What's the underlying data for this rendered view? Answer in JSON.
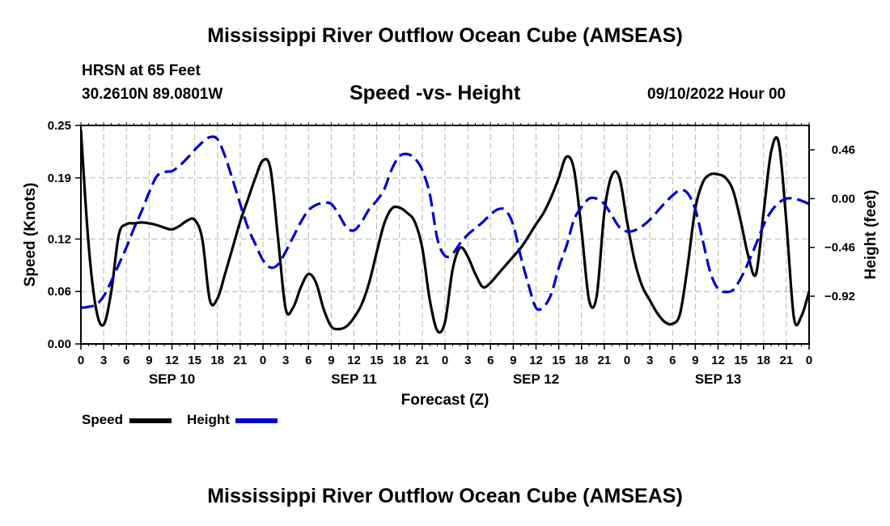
{
  "header": {
    "main_title": "Mississippi River Outflow Ocean Cube (AMSEAS)",
    "station": "HRSN at 65 Feet",
    "coordinates": "30.2610N  89.0801W",
    "datetime": "09/10/2022 Hour 00",
    "bottom_title": "Mississippi River Outflow Ocean Cube (AMSEAS)"
  },
  "legend": {
    "speed_label": "Speed",
    "height_label": "Height"
  },
  "colors": {
    "speed": "#000000",
    "height": "#0000cc",
    "grid": "#b4b4b4"
  },
  "chart_data": {
    "type": "line",
    "title": "Speed -vs- Height",
    "xlabel": "Forecast (Z)",
    "ylabel": "Speed (Knots)",
    "y2label": "Height (feet)",
    "xlim": [
      0,
      96
    ],
    "ylim": [
      0,
      0.25
    ],
    "y2lim": [
      -1.37,
      0.69
    ],
    "x_tick_values": [
      0,
      3,
      6,
      9,
      12,
      15,
      18,
      21,
      24,
      27,
      30,
      33,
      36,
      39,
      42,
      45,
      48,
      51,
      54,
      57,
      60,
      63,
      66,
      69,
      72,
      75,
      78,
      81,
      84,
      87,
      90,
      93,
      96
    ],
    "x_tick_labels": [
      "0",
      "3",
      "6",
      "9",
      "12",
      "15",
      "18",
      "21",
      "0",
      "3",
      "6",
      "9",
      "12",
      "15",
      "18",
      "21",
      "0",
      "3",
      "6",
      "9",
      "12",
      "15",
      "18",
      "21",
      "0",
      "3",
      "6",
      "9",
      "12",
      "15",
      "18",
      "21",
      "0"
    ],
    "date_labels": [
      {
        "label": "SEP 10",
        "x": 12
      },
      {
        "label": "SEP 11",
        "x": 36
      },
      {
        "label": "SEP 12",
        "x": 60
      },
      {
        "label": "SEP 13",
        "x": 84
      }
    ],
    "y_ticks": [
      0.0,
      0.06,
      0.12,
      0.19,
      0.25
    ],
    "y_tick_labels": [
      "0.00",
      "0.06",
      "0.12",
      "0.19",
      "0.25"
    ],
    "y2_ticks": [
      0.46,
      0.0,
      -0.46,
      -0.92
    ],
    "y2_tick_labels": [
      "0.46",
      "0.00",
      "−0.46",
      "−0.92"
    ],
    "grid": true,
    "series": [
      {
        "name": "Speed",
        "axis": "left",
        "style": "solid",
        "x": [
          0,
          1,
          2,
          3,
          4,
          5,
          6,
          7,
          8,
          9,
          10,
          11,
          12,
          13,
          14,
          15,
          16,
          17,
          18,
          19,
          20,
          21,
          22,
          23,
          24,
          25,
          26,
          27,
          28,
          29,
          30,
          31,
          32,
          33,
          34,
          35,
          36,
          37,
          38,
          39,
          40,
          41,
          42,
          43,
          44,
          45,
          46,
          47,
          48,
          49,
          50,
          51,
          52,
          53,
          54,
          55,
          56,
          57,
          58,
          59,
          60,
          61,
          62,
          63,
          64,
          65,
          66,
          67,
          68,
          69,
          70,
          71,
          72,
          73,
          74,
          75,
          76,
          77,
          78,
          79,
          80,
          81,
          82,
          83,
          84,
          85,
          86,
          87,
          88,
          89,
          90,
          91,
          92,
          93,
          94,
          95,
          96
        ],
        "values": [
          0.245,
          0.115,
          0.04,
          0.022,
          0.06,
          0.125,
          0.137,
          0.138,
          0.139,
          0.138,
          0.136,
          0.133,
          0.131,
          0.135,
          0.141,
          0.142,
          0.12,
          0.05,
          0.052,
          0.08,
          0.11,
          0.14,
          0.165,
          0.19,
          0.21,
          0.2,
          0.12,
          0.04,
          0.042,
          0.065,
          0.08,
          0.07,
          0.04,
          0.02,
          0.017,
          0.02,
          0.03,
          0.045,
          0.07,
          0.105,
          0.138,
          0.155,
          0.156,
          0.15,
          0.14,
          0.11,
          0.05,
          0.015,
          0.025,
          0.085,
          0.11,
          0.1,
          0.08,
          0.065,
          0.07,
          0.08,
          0.09,
          0.1,
          0.11,
          0.123,
          0.137,
          0.15,
          0.168,
          0.19,
          0.214,
          0.2,
          0.13,
          0.05,
          0.055,
          0.15,
          0.193,
          0.19,
          0.14,
          0.095,
          0.066,
          0.05,
          0.035,
          0.025,
          0.023,
          0.035,
          0.09,
          0.155,
          0.185,
          0.194,
          0.194,
          0.19,
          0.175,
          0.14,
          0.1,
          0.08,
          0.15,
          0.22,
          0.23,
          0.14,
          0.03,
          0.032,
          0.06
        ]
      },
      {
        "name": "Height",
        "axis": "right",
        "style": "dashed",
        "x": [
          0,
          1,
          2,
          3,
          4,
          5,
          6,
          7,
          8,
          9,
          10,
          11,
          12,
          13,
          14,
          15,
          16,
          17,
          18,
          19,
          20,
          21,
          22,
          23,
          24,
          25,
          26,
          27,
          28,
          29,
          30,
          31,
          32,
          33,
          34,
          35,
          36,
          37,
          38,
          39,
          40,
          41,
          42,
          43,
          44,
          45,
          46,
          47,
          48,
          49,
          50,
          51,
          52,
          53,
          54,
          55,
          56,
          57,
          58,
          59,
          60,
          61,
          62,
          63,
          64,
          65,
          66,
          67,
          68,
          69,
          70,
          71,
          72,
          73,
          74,
          75,
          76,
          77,
          78,
          79,
          80,
          81,
          82,
          83,
          84,
          85,
          86,
          87,
          88,
          89,
          90,
          91,
          92,
          93,
          94,
          95,
          96
        ],
        "values": [
          -1.03,
          -1.02,
          -1.0,
          -0.92,
          -0.78,
          -0.62,
          -0.46,
          -0.28,
          -0.12,
          0.06,
          0.21,
          0.25,
          0.26,
          0.31,
          0.38,
          0.46,
          0.53,
          0.58,
          0.56,
          0.4,
          0.18,
          -0.05,
          -0.27,
          -0.43,
          -0.58,
          -0.65,
          -0.62,
          -0.5,
          -0.36,
          -0.22,
          -0.11,
          -0.06,
          -0.04,
          -0.05,
          -0.15,
          -0.27,
          -0.3,
          -0.22,
          -0.1,
          -0.02,
          0.09,
          0.28,
          0.4,
          0.42,
          0.38,
          0.27,
          0.04,
          -0.38,
          -0.54,
          -0.52,
          -0.42,
          -0.34,
          -0.28,
          -0.22,
          -0.15,
          -0.1,
          -0.11,
          -0.25,
          -0.55,
          -0.81,
          -1.03,
          -1.02,
          -0.9,
          -0.65,
          -0.45,
          -0.2,
          -0.08,
          0.0,
          0.0,
          -0.05,
          -0.16,
          -0.27,
          -0.31,
          -0.3,
          -0.26,
          -0.2,
          -0.12,
          -0.04,
          0.03,
          0.08,
          0.05,
          -0.1,
          -0.4,
          -0.7,
          -0.85,
          -0.88,
          -0.86,
          -0.75,
          -0.6,
          -0.43,
          -0.25,
          -0.12,
          -0.04,
          0.0,
          0.0,
          -0.02,
          -0.05
        ]
      }
    ]
  }
}
